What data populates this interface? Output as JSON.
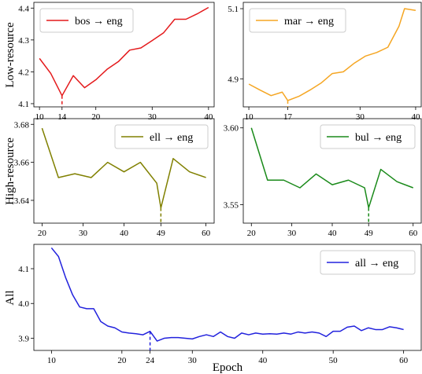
{
  "figure": {
    "row_labels": [
      "Low-resource",
      "High-resource",
      "All"
    ],
    "xlabel": "Epoch"
  },
  "chart_data": [
    {
      "type": "line",
      "panel": "bos",
      "series": [
        {
          "name": "bos → eng",
          "color": "#e41a1c",
          "x": [
            10,
            12,
            14,
            16,
            18,
            20,
            22,
            24,
            26,
            28,
            30,
            32,
            34,
            36,
            38,
            40
          ],
          "values": [
            4.242,
            4.195,
            4.125,
            4.188,
            4.15,
            4.175,
            4.208,
            4.232,
            4.268,
            4.275,
            4.298,
            4.322,
            4.365,
            4.365,
            4.382,
            4.402
          ]
        }
      ],
      "xticks": [
        10,
        14,
        20,
        30,
        40
      ],
      "yticks": [
        4.1,
        4.2,
        4.3,
        4.4
      ],
      "xlim": [
        9,
        41
      ],
      "ylim": [
        4.09,
        4.418
      ],
      "marker_x": 14,
      "legend": "top-left"
    },
    {
      "type": "line",
      "panel": "mar",
      "series": [
        {
          "name": "mar → eng",
          "color": "#f5a623",
          "x": [
            10,
            12,
            14,
            16,
            17,
            19,
            21,
            23,
            25,
            27,
            29,
            31,
            33,
            35,
            37,
            38,
            40
          ],
          "values": [
            4.885,
            4.868,
            4.852,
            4.862,
            4.838,
            4.85,
            4.868,
            4.888,
            4.915,
            4.92,
            4.945,
            4.965,
            4.975,
            4.99,
            5.05,
            5.1,
            5.095
          ]
        }
      ],
      "xticks": [
        10,
        17,
        30,
        40
      ],
      "yticks": [
        4.9,
        5.1
      ],
      "xlim": [
        9,
        41
      ],
      "ylim": [
        4.82,
        5.118
      ],
      "marker_x": 17,
      "legend": "top-left"
    },
    {
      "type": "line",
      "panel": "ell",
      "series": [
        {
          "name": "ell → eng",
          "color": "#808000",
          "x": [
            20,
            24,
            28,
            32,
            36,
            40,
            44,
            48,
            49,
            52,
            56,
            60
          ],
          "values": [
            3.678,
            3.652,
            3.654,
            3.652,
            3.66,
            3.655,
            3.66,
            3.649,
            3.636,
            3.662,
            3.655,
            3.652
          ]
        }
      ],
      "xticks": [
        20,
        30,
        40,
        49,
        60
      ],
      "yticks": [
        3.64,
        3.66,
        3.68
      ],
      "xlim": [
        18,
        62
      ],
      "ylim": [
        3.628,
        3.683
      ],
      "marker_x": 49,
      "legend": "top-right"
    },
    {
      "type": "line",
      "panel": "bul",
      "series": [
        {
          "name": "bul → eng",
          "color": "#1a8a1a",
          "x": [
            20,
            24,
            28,
            32,
            36,
            40,
            44,
            48,
            49,
            52,
            56,
            60
          ],
          "values": [
            3.6,
            3.566,
            3.566,
            3.561,
            3.57,
            3.563,
            3.566,
            3.561,
            3.548,
            3.573,
            3.565,
            3.561
          ]
        }
      ],
      "xticks": [
        20,
        30,
        40,
        49,
        60
      ],
      "yticks": [
        3.55,
        3.6
      ],
      "xlim": [
        18,
        62
      ],
      "ylim": [
        3.538,
        3.606
      ],
      "marker_x": 49,
      "legend": "top-right"
    },
    {
      "type": "line",
      "panel": "all",
      "series": [
        {
          "name": "all → eng",
          "color": "#2222dd",
          "x": [
            10,
            11,
            12,
            13,
            14,
            15,
            16,
            17,
            18,
            19,
            20,
            21,
            22,
            23,
            24,
            25,
            26,
            27,
            28,
            29,
            30,
            31,
            32,
            33,
            34,
            35,
            36,
            37,
            38,
            39,
            40,
            41,
            42,
            43,
            44,
            45,
            46,
            47,
            48,
            49,
            50,
            51,
            52,
            53,
            54,
            55,
            56,
            57,
            58,
            59,
            60
          ],
          "values": [
            4.16,
            4.135,
            4.075,
            4.025,
            3.99,
            3.985,
            3.985,
            3.948,
            3.935,
            3.93,
            3.918,
            3.915,
            3.913,
            3.91,
            3.92,
            3.892,
            3.9,
            3.902,
            3.902,
            3.9,
            3.898,
            3.905,
            3.91,
            3.905,
            3.918,
            3.905,
            3.9,
            3.915,
            3.91,
            3.915,
            3.912,
            3.913,
            3.912,
            3.915,
            3.912,
            3.918,
            3.915,
            3.918,
            3.915,
            3.905,
            3.92,
            3.92,
            3.932,
            3.935,
            3.922,
            3.93,
            3.925,
            3.925,
            3.933,
            3.93,
            3.925
          ]
        }
      ],
      "xticks": [
        10,
        20,
        24,
        30,
        40,
        50,
        60
      ],
      "yticks": [
        3.9,
        4.0,
        4.1
      ],
      "xlim": [
        7.5,
        62.5
      ],
      "ylim": [
        3.865,
        4.17
      ],
      "marker_x": 24,
      "legend": "top-right"
    }
  ]
}
